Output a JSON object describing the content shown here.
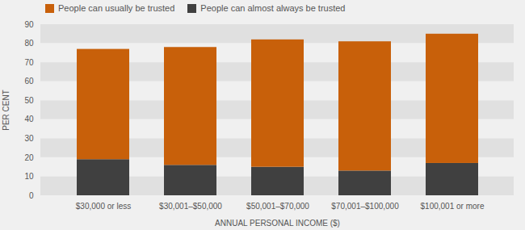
{
  "chart_data": {
    "type": "bar",
    "stacked": true,
    "categories": [
      "$30,000 or less",
      "$30,001–$50,000",
      "$50,001–$70,000",
      "$70,001–$100,000",
      "$100,001 or more"
    ],
    "series": [
      {
        "name": "People can almost always be trusted",
        "color": "#404040",
        "values": [
          19,
          16,
          15,
          13,
          17
        ]
      },
      {
        "name": "People can usually be trusted",
        "color": "#c8600a",
        "values": [
          58,
          62,
          67,
          68,
          68
        ]
      }
    ],
    "xlabel": "ANNUAL PERSONAL INCOME ($)",
    "ylabel": "PER CENT",
    "ylim": [
      0,
      90
    ],
    "yticks": [
      0,
      10,
      20,
      30,
      40,
      50,
      60,
      70,
      80,
      90
    ],
    "grid": true,
    "legend": "upper left"
  }
}
